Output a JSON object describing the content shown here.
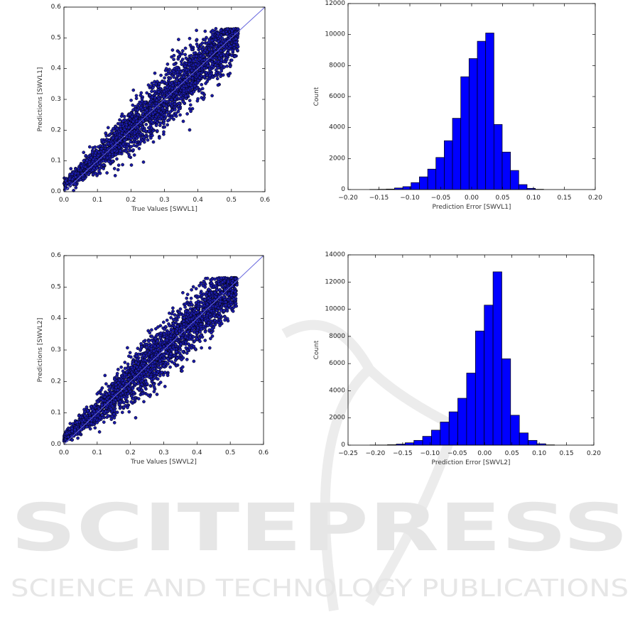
{
  "watermark": {
    "line1": "SCITEPRESS",
    "line2": "SCIENCE AND TECHNOLOGY PUBLICATIONS"
  },
  "colors": {
    "bar": "#0000ff",
    "point": "#1a1aa8",
    "point_edge": "#000000",
    "identity_line": "#6666dd"
  },
  "chart_data": [
    {
      "id": "scatter1",
      "type": "scatter",
      "xlabel": "True Values [SWVL1]",
      "ylabel": "Predictions [SWVL1]",
      "xlim": [
        0,
        0.6
      ],
      "ylim": [
        0,
        0.6
      ],
      "xticks": [
        "0.0",
        "0.1",
        "0.2",
        "0.3",
        "0.4",
        "0.5",
        "0.6"
      ],
      "yticks": [
        "0.0",
        "0.1",
        "0.2",
        "0.3",
        "0.4",
        "0.5",
        "0.6"
      ],
      "reference_line": {
        "x": [
          0,
          0.6
        ],
        "y": [
          0,
          0.6
        ]
      },
      "true_value_range": [
        0,
        0.52
      ],
      "grid": false
    },
    {
      "id": "hist1",
      "type": "bar",
      "xlabel": "Prediction Error [SWVL1]",
      "ylabel": "Count",
      "xlim": [
        -0.2,
        0.2
      ],
      "ylim": [
        0,
        12000
      ],
      "xticks": [
        "−0.20",
        "−0.15",
        "−0.10",
        "−0.05",
        "0.00",
        "0.05",
        "0.10",
        "0.15",
        "0.20"
      ],
      "yticks": [
        "0",
        "2000",
        "4000",
        "6000",
        "8000",
        "10000",
        "12000"
      ],
      "bin_start": -0.165,
      "bin_width": 0.0134,
      "values": [
        10,
        20,
        30,
        100,
        190,
        450,
        820,
        1320,
        2070,
        3150,
        4600,
        7280,
        8450,
        9570,
        10100,
        4200,
        2420,
        1230,
        320,
        80,
        20
      ],
      "grid": false
    },
    {
      "id": "scatter2",
      "type": "scatter",
      "xlabel": "True Values [SWVL2]",
      "ylabel": "Predictions [SWVL2]",
      "xlim": [
        0,
        0.6
      ],
      "ylim": [
        0,
        0.6
      ],
      "xticks": [
        "0.0",
        "0.1",
        "0.2",
        "0.3",
        "0.4",
        "0.5",
        "0.6"
      ],
      "yticks": [
        "0.0",
        "0.1",
        "0.2",
        "0.3",
        "0.4",
        "0.5",
        "0.6"
      ],
      "reference_line": {
        "x": [
          0,
          0.6
        ],
        "y": [
          0,
          0.6
        ]
      },
      "true_value_range": [
        0,
        0.52
      ],
      "grid": false
    },
    {
      "id": "hist2",
      "type": "bar",
      "xlabel": "Prediction Error [SWVL2]",
      "ylabel": "Count",
      "xlim": [
        -0.25,
        0.2
      ],
      "ylim": [
        0,
        14000
      ],
      "xticks": [
        "−0.25",
        "−0.20",
        "−0.15",
        "−0.10",
        "−0.05",
        "0.00",
        "0.05",
        "0.10",
        "0.15",
        "0.20"
      ],
      "yticks": [
        "0",
        "2000",
        "4000",
        "6000",
        "8000",
        "10000",
        "12000",
        "14000"
      ],
      "bin_start": -0.21,
      "bin_width": 0.0161,
      "values": [
        10,
        10,
        30,
        80,
        170,
        350,
        650,
        1100,
        1700,
        2450,
        3450,
        5300,
        8400,
        10300,
        12750,
        6350,
        2200,
        900,
        350,
        100,
        20
      ],
      "grid": false
    }
  ]
}
